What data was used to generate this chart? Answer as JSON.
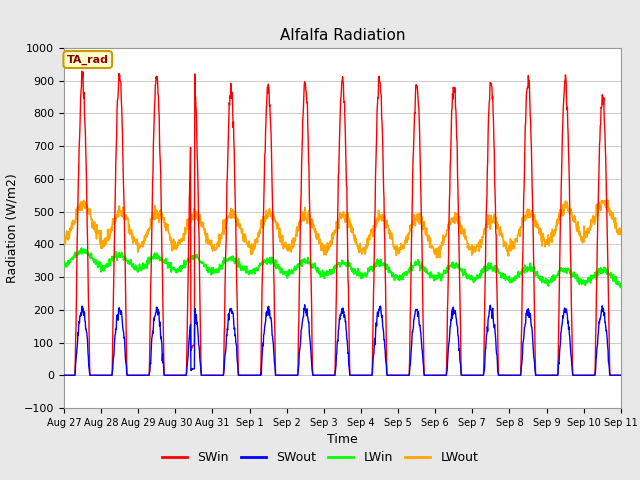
{
  "title": "Alfalfa Radiation",
  "xlabel": "Time",
  "ylabel": "Radiation (W/m2)",
  "ylim": [
    -100,
    1000
  ],
  "fig_bg_color": "#e8e8e8",
  "plot_bg_color": "#f0f0f0",
  "annotation_text": "TA_rad",
  "annotation_bg": "#ffffcc",
  "annotation_border": "#cc9900",
  "legend_entries": [
    "SWin",
    "SWout",
    "LWin",
    "LWout"
  ],
  "line_colors": [
    "red",
    "blue",
    "#00ff00",
    "orange"
  ],
  "x_tick_labels": [
    "Aug 27",
    "Aug 28",
    "Aug 29",
    "Aug 30",
    "Aug 31",
    "Sep 1",
    "Sep 2",
    "Sep 3",
    "Sep 4",
    "Sep 5",
    "Sep 6",
    "Sep 7",
    "Sep 8",
    "Sep 9",
    "Sep 10",
    "Sep 11"
  ],
  "n_days": 15,
  "pts_per_day": 96
}
